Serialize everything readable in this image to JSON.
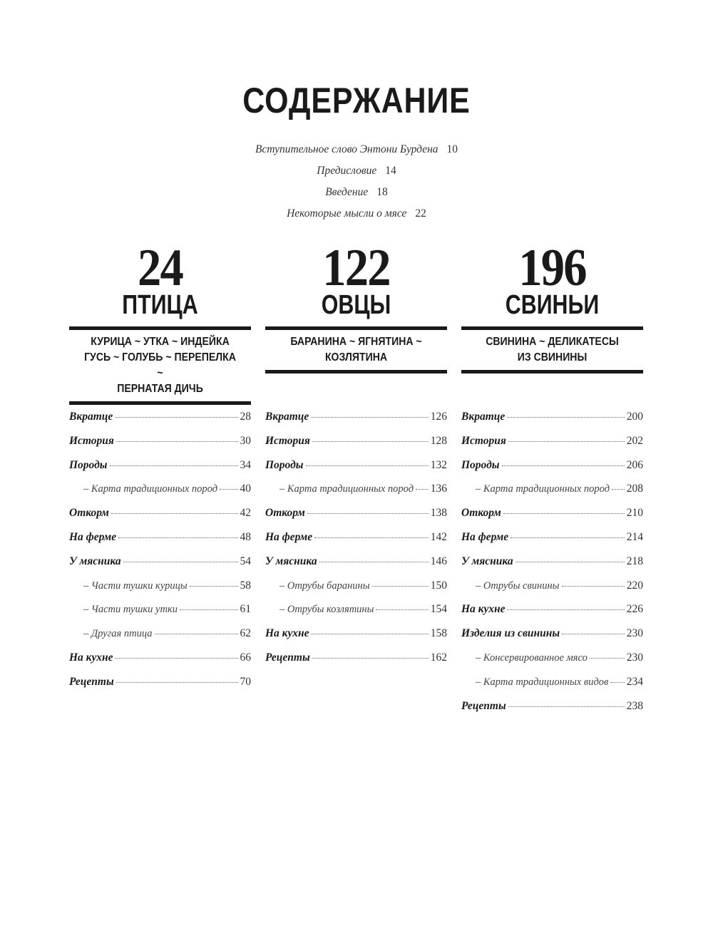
{
  "title": "СОДЕРЖАНИЕ",
  "intro": [
    {
      "label": "Вступительное слово Энтони Бурдена",
      "page": "10"
    },
    {
      "label": "Предисловие",
      "page": "14"
    },
    {
      "label": "Введение",
      "page": "18"
    },
    {
      "label": "Некоторые мысли о мясе",
      "page": "22"
    }
  ],
  "sections": [
    {
      "number": "24",
      "name": "ПТИЦА",
      "subtitle": [
        "КУРИЦА ~ УТКА ~ ИНДЕЙКА",
        "ГУСЬ ~ ГОЛУБЬ ~ ПЕРЕПЕЛКА ~",
        "ПЕРНАТАЯ ДИЧЬ"
      ],
      "items": [
        {
          "label": "Вкратце",
          "page": "28",
          "sub": false
        },
        {
          "label": "История",
          "page": "30",
          "sub": false
        },
        {
          "label": "Породы",
          "page": "34",
          "sub": false
        },
        {
          "label": "– Карта традиционных пород",
          "page": "40",
          "sub": true
        },
        {
          "label": "Откорм",
          "page": "42",
          "sub": false
        },
        {
          "label": "На ферме",
          "page": "48",
          "sub": false
        },
        {
          "label": "У мясника",
          "page": "54",
          "sub": false
        },
        {
          "label": "– Части тушки курицы",
          "page": "58",
          "sub": true
        },
        {
          "label": "– Части тушки утки",
          "page": "61",
          "sub": true
        },
        {
          "label": "– Другая птица",
          "page": "62",
          "sub": true
        },
        {
          "label": "На кухне",
          "page": "66",
          "sub": false
        },
        {
          "label": "Рецепты",
          "page": "70",
          "sub": false
        }
      ]
    },
    {
      "number": "122",
      "name": "ОВЦЫ",
      "subtitle": [
        "БАРАНИНА ~ ЯГНЯТИНА ~",
        "КОЗЛЯТИНА"
      ],
      "items": [
        {
          "label": "Вкратце",
          "page": "126",
          "sub": false
        },
        {
          "label": "История",
          "page": "128",
          "sub": false
        },
        {
          "label": "Породы",
          "page": "132",
          "sub": false
        },
        {
          "label": "– Карта традиционных пород",
          "page": "136",
          "sub": true
        },
        {
          "label": "Откорм",
          "page": "138",
          "sub": false
        },
        {
          "label": "На ферме",
          "page": "142",
          "sub": false
        },
        {
          "label": "У мясника",
          "page": "146",
          "sub": false
        },
        {
          "label": "– Отрубы баранины",
          "page": "150",
          "sub": true
        },
        {
          "label": "– Отрубы козлятины",
          "page": "154",
          "sub": true
        },
        {
          "label": "На кухне",
          "page": "158",
          "sub": false
        },
        {
          "label": "Рецепты",
          "page": "162",
          "sub": false
        }
      ]
    },
    {
      "number": "196",
      "name": "СВИНЬИ",
      "subtitle": [
        "СВИНИНА ~ ДЕЛИКАТЕСЫ",
        "ИЗ СВИНИНЫ"
      ],
      "items": [
        {
          "label": "Вкратце",
          "page": "200",
          "sub": false
        },
        {
          "label": "История",
          "page": "202",
          "sub": false
        },
        {
          "label": "Породы",
          "page": "206",
          "sub": false
        },
        {
          "label": "– Карта традиционных пород",
          "page": "208",
          "sub": true
        },
        {
          "label": "Откорм",
          "page": "210",
          "sub": false
        },
        {
          "label": "На ферме",
          "page": "214",
          "sub": false
        },
        {
          "label": "У мясника",
          "page": "218",
          "sub": false
        },
        {
          "label": "– Отрубы свинины",
          "page": "220",
          "sub": true
        },
        {
          "label": "На кухне",
          "page": "226",
          "sub": false
        },
        {
          "label": "Изделия из свинины",
          "page": "230",
          "sub": false
        },
        {
          "label": "– Консервированное мясо",
          "page": "230",
          "sub": true
        },
        {
          "label": "– Карта традиционных видов",
          "page": "234",
          "sub": true
        },
        {
          "label": "Рецепты",
          "page": "238",
          "sub": false
        }
      ]
    }
  ]
}
